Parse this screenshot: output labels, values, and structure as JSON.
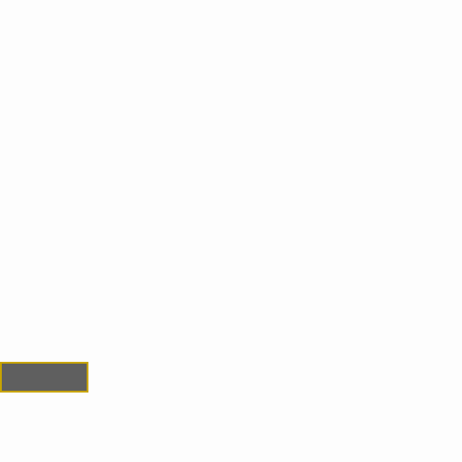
{
  "colors": {
    "background": "#fdfdfd",
    "block_fill": "#5f5f5f",
    "block_border": "#c8a400"
  }
}
